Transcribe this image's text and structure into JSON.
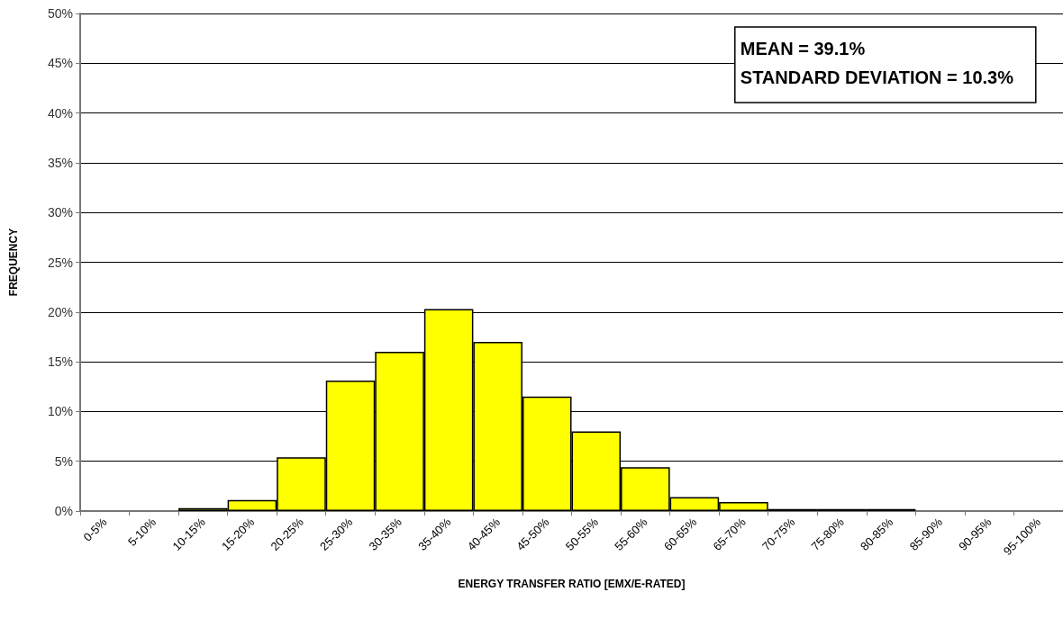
{
  "chart_data": {
    "type": "bar",
    "xlabel": "ENERGY TRANSFER RATIO [EMX/E-RATED]",
    "ylabel": "FREQUENCY",
    "annotations": [
      "MEAN = 39.1%",
      "STANDARD DEVIATION = 10.3%"
    ],
    "categories": [
      "0-5%",
      "5-10%",
      "10-15%",
      "15-20%",
      "20-25%",
      "25-30%",
      "30-35%",
      "35-40%",
      "40-45%",
      "45-50%",
      "50-55%",
      "55-60%",
      "60-65%",
      "65-70%",
      "70-75%",
      "75-80%",
      "80-85%",
      "85-90%",
      "90-95%",
      "95-100%"
    ],
    "series": [
      {
        "color": "#ffff00",
        "values": [
          0,
          0,
          0.3,
          1.1,
          5.4,
          13.1,
          16.0,
          20.3,
          17.0,
          11.5,
          8.0,
          4.4,
          1.4,
          0.9,
          0.2,
          0.2,
          0.2,
          0,
          0,
          0
        ]
      }
    ],
    "ylim": [
      0,
      50
    ],
    "yticks": [
      {
        "value": 0,
        "label": "0%"
      },
      {
        "value": 5,
        "label": "5%"
      },
      {
        "value": 10,
        "label": "10%"
      },
      {
        "value": 15,
        "label": "15%"
      },
      {
        "value": 20,
        "label": "20%"
      },
      {
        "value": 25,
        "label": "25%"
      },
      {
        "value": 30,
        "label": "30%"
      },
      {
        "value": 35,
        "label": "35%"
      },
      {
        "value": 40,
        "label": "40%"
      },
      {
        "value": 45,
        "label": "45%"
      },
      {
        "value": 50,
        "label": "50%"
      }
    ],
    "grid": "y"
  }
}
